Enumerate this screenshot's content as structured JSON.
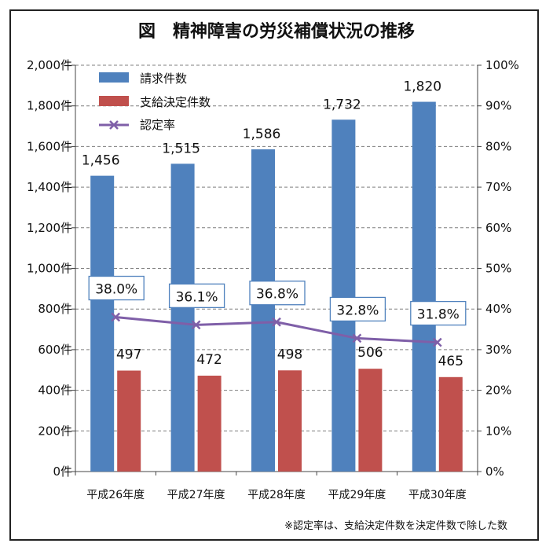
{
  "chart_data": {
    "type": "bar",
    "title": "図　精神障害の労災補償状況の推移",
    "categories": [
      "平成26年度",
      "平成27年度",
      "平成28年度",
      "平成29年度",
      "平成30年度"
    ],
    "series": [
      {
        "name": "請求件数",
        "type": "bar",
        "axis": "left",
        "color": "#4F81BD",
        "values": [
          1456,
          1515,
          1586,
          1732,
          1820
        ],
        "labels": [
          "1,456",
          "1,515",
          "1,586",
          "1,732",
          "1,820"
        ]
      },
      {
        "name": "支給決定件数",
        "type": "bar",
        "axis": "left",
        "color": "#C0504D",
        "values": [
          497,
          472,
          498,
          506,
          465
        ],
        "labels": [
          "497",
          "472",
          "498",
          "506",
          "465"
        ]
      },
      {
        "name": "認定率",
        "type": "line",
        "axis": "right",
        "color": "#7F5FA8",
        "values": [
          38.0,
          36.1,
          36.8,
          32.8,
          31.8
        ],
        "labels": [
          "38.0%",
          "36.1%",
          "36.8%",
          "32.8%",
          "31.8%"
        ]
      }
    ],
    "y_left": {
      "lim": [
        0,
        2000
      ],
      "ticks": [
        "0件",
        "200件",
        "400件",
        "600件",
        "800件",
        "1,000件",
        "1,200件",
        "1,400件",
        "1,600件",
        "1,800件",
        "2,000件"
      ]
    },
    "y_right": {
      "lim": [
        0,
        100
      ],
      "ticks": [
        "0%",
        "10%",
        "20%",
        "30%",
        "40%",
        "50%",
        "60%",
        "70%",
        "80%",
        "90%",
        "100%"
      ]
    },
    "grid": true,
    "legend": "top-left",
    "note": "※認定率は、支給決定件数を決定件数で除した数"
  }
}
